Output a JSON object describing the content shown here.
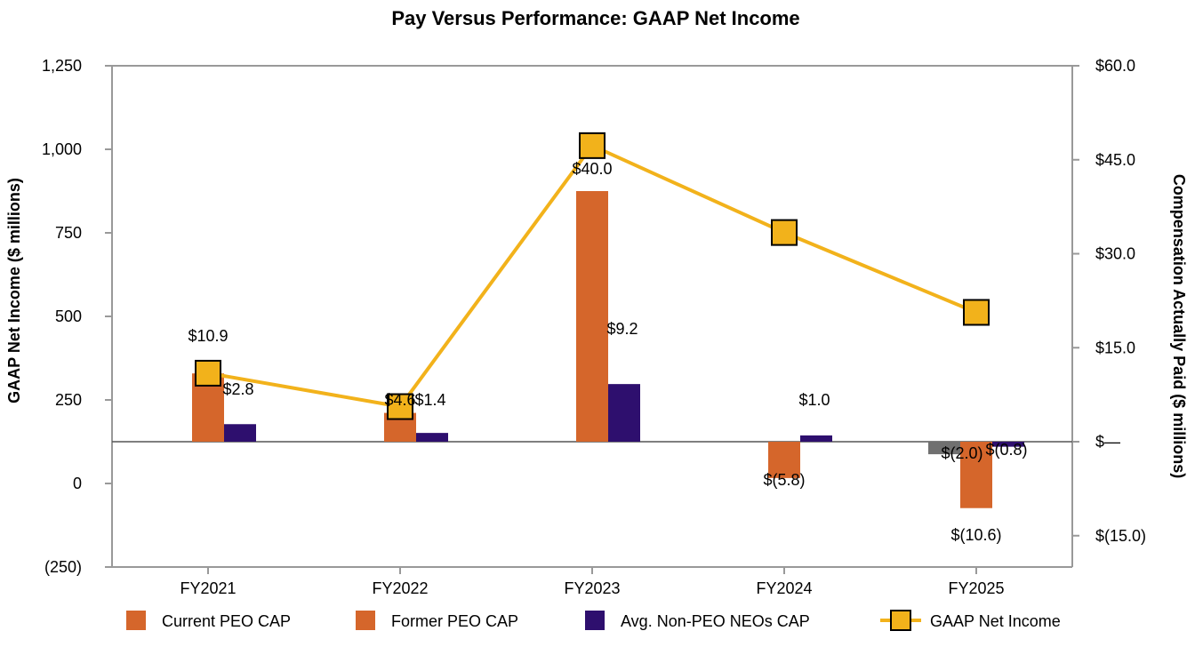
{
  "chart_data": {
    "type": "bar",
    "title": "Pay Versus Performance: GAAP Net Income",
    "categories": [
      "FY2021",
      "FY2022",
      "FY2023",
      "FY2024",
      "FY2025"
    ],
    "left_axis": {
      "label": "GAAP Net Income ($ millions)",
      "ylim": [
        -250,
        1250
      ],
      "ticks": [
        -250,
        0,
        250,
        500,
        750,
        1000,
        1250
      ],
      "tick_labels": [
        "(250)",
        "0",
        "250",
        "500",
        "750",
        "1,000",
        "1,250"
      ]
    },
    "right_axis": {
      "label": "Compensation Actually Paid ($ millions)",
      "ylim": [
        -20,
        60
      ],
      "ticks": [
        -15,
        0,
        15,
        30,
        45,
        60
      ],
      "tick_labels": [
        "$(15.0)",
        "$—",
        "$15.0",
        "$30.0",
        "$45.0",
        "$60.0"
      ]
    },
    "series": [
      {
        "name": "Current PEO CAP",
        "type": "bar",
        "axis": "right",
        "color": "#D5662B",
        "values": [
          null,
          null,
          null,
          null,
          -2.0
        ],
        "labels": [
          "",
          "",
          "",
          "",
          "$(2.0)"
        ]
      },
      {
        "name": "Former PEO CAP",
        "type": "bar",
        "axis": "right",
        "color": "#D5662B",
        "values": [
          10.9,
          4.6,
          40.0,
          -5.8,
          -10.6
        ],
        "labels": [
          "$10.9",
          "$4.6",
          "$40.0",
          "$(5.8)",
          "$(10.6)"
        ]
      },
      {
        "name": "Avg. Non-PEO NEOs CAP",
        "type": "bar",
        "axis": "right",
        "color": "#2E0F6E",
        "values": [
          2.8,
          1.4,
          9.2,
          1.0,
          -0.8
        ],
        "labels": [
          "$2.8",
          "$1.4",
          "$9.2",
          "$1.0",
          "$(0.8)"
        ]
      },
      {
        "name": "GAAP Net Income",
        "type": "line",
        "axis": "left",
        "color": "#F2B21B",
        "values": [
          330,
          230,
          1011,
          751,
          512
        ]
      }
    ],
    "current_peo_fy2025_bar_color": "#707070",
    "legend": {
      "placement": "bottom",
      "items": [
        {
          "label": "Current PEO CAP",
          "color": "#D5662B",
          "marker": "square"
        },
        {
          "label": "Former PEO CAP",
          "color": "#D5662B",
          "marker": "square"
        },
        {
          "label": "Avg. Non-PEO NEOs CAP",
          "color": "#2E0F6E",
          "marker": "square"
        },
        {
          "label": "GAAP Net Income",
          "color": "#F2B21B",
          "marker": "line-square"
        }
      ]
    }
  }
}
